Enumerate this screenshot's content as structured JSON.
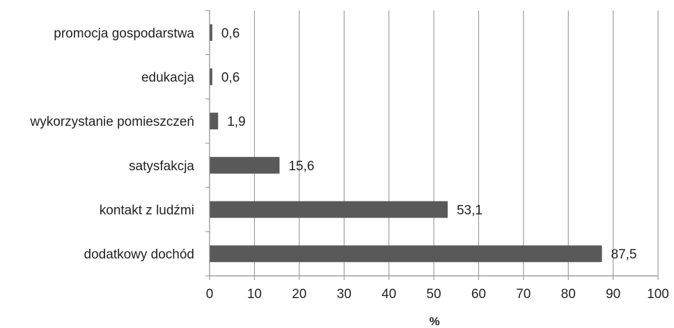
{
  "chart_data": {
    "type": "bar",
    "orientation": "horizontal",
    "title": "",
    "xlabel": "%",
    "ylabel": "",
    "categories": [
      "promocja gospodarstwa",
      "edukacja",
      "wykorzystanie pomieszczeń",
      "satysfakcja",
      "kontakt z ludźmi",
      "dodatkowy dochód"
    ],
    "values": [
      0.6,
      0.6,
      1.9,
      15.6,
      53.1,
      87.5
    ],
    "value_labels": [
      "0,6",
      "0,6",
      "1,9",
      "15,6",
      "53,1",
      "87,5"
    ],
    "xlim": [
      0,
      100
    ],
    "xticks": [
      "0",
      "10",
      "20",
      "30",
      "40",
      "50",
      "60",
      "70",
      "80",
      "90",
      "100"
    ],
    "grid": "vertical",
    "legend": "none",
    "bar_color": "#595959",
    "grid_color": "#8c8c8c"
  }
}
